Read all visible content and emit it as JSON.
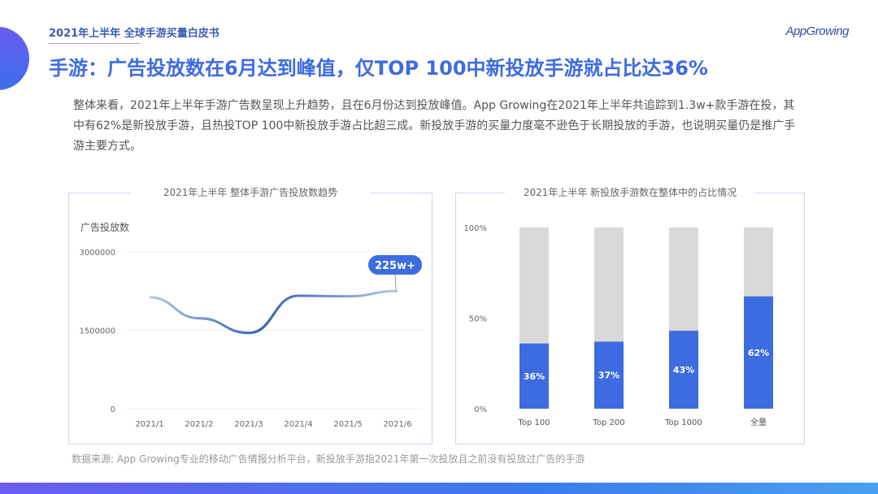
{
  "header": {
    "subtitle": "2021年上半年 全球手游买量白皮书",
    "logo": "AppGrowing",
    "title": "手游：广告投放数在6月达到峰值，仅TOP 100中新投放手游就占比达36%"
  },
  "body_text": "整体来看，2021年上半年手游广告数呈现上升趋势，且在6月份达到投放峰值。App Growing在2021年上半年共追踪到1.3w+款手游在投，其中有62%是新投放手游，且热投TOP 100中新投放手游占比超三成。新投放手游的买量力度毫不逊色于长期投放的手游，也说明买量仍是推广手游主要方式。",
  "source": "数据来源: App Growing专业的移动广告情报分析平台，新投放手游指2021年第一次投放且之前没有投放过广告的手游",
  "chart_data": [
    {
      "type": "line",
      "title": "2021年上半年 整体手游广告投放数趋势",
      "ylabel": "广告投放数",
      "categories": [
        "2021/1",
        "2021/2",
        "2021/3",
        "2021/4",
        "2021/5",
        "2021/6"
      ],
      "values": [
        2130000,
        1730000,
        1450000,
        2160000,
        2150000,
        2250000
      ],
      "ylim": [
        0,
        3000000
      ],
      "yticks": [
        "0",
        "1500000",
        "3000000"
      ],
      "annotation": "225w+",
      "color": "#3d6be0",
      "grid": true
    },
    {
      "type": "bar",
      "stacked": true,
      "title": "2021年上半年 新投放手游数在整体中的占比情况",
      "categories": [
        "Top 100",
        "Top 200",
        "Top 1000",
        "全量"
      ],
      "values": [
        36,
        37,
        43,
        62
      ],
      "labels": [
        "36%",
        "37%",
        "43%",
        "62%"
      ],
      "ylim": [
        0,
        100
      ],
      "yticks": [
        "0%",
        "50%",
        "100%"
      ],
      "colors": {
        "new": "#3d6be0",
        "rest": "#d9d9d9"
      }
    }
  ]
}
